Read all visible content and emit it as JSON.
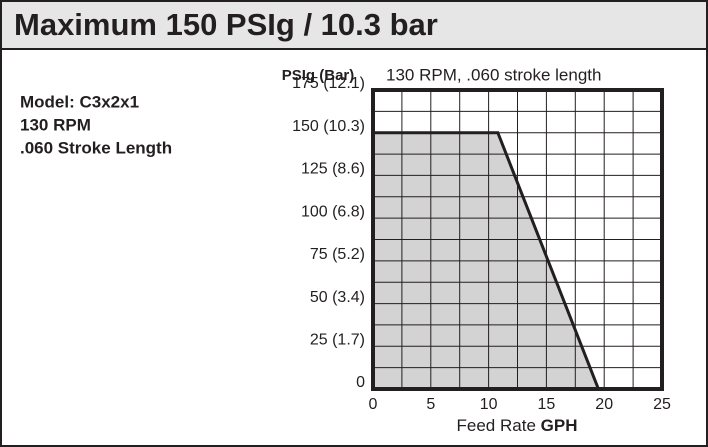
{
  "chart_data": {
    "type": "area",
    "title": "Maximum 150 PSIg / 10.3 bar",
    "subtitle": "130 RPM, .060 stroke length",
    "notes": [
      "Model: C3x2x1",
      "130 RPM",
      ".060 Stroke Length"
    ],
    "ylabel": "PSIg (Bar)",
    "xlabel": "Feed Rate",
    "xlabel_unit": "GPH",
    "x": [
      0,
      10.8,
      19.5
    ],
    "series": [
      {
        "name": "130 RPM, .060 stroke length",
        "color": "#d3d3d3",
        "values": [
          150,
          150,
          0
        ]
      }
    ],
    "xlim": [
      0,
      25
    ],
    "xticks": [
      0,
      5,
      10,
      15,
      20,
      25
    ],
    "ylim": [
      0,
      175
    ],
    "yticks": [
      0,
      {
        "value": 25,
        "label": "25 (1.7)"
      },
      {
        "value": 50,
        "label": "50 (3.4)"
      },
      {
        "value": 75,
        "label": "75 (5.2)"
      },
      {
        "value": 100,
        "label": "100 (6.8)"
      },
      {
        "value": 125,
        "label": "125 (8.6)"
      },
      {
        "value": 150,
        "label": "150 (10.3)"
      },
      {
        "value": 175,
        "label": "175 (12.1)"
      }
    ],
    "grid": true
  }
}
